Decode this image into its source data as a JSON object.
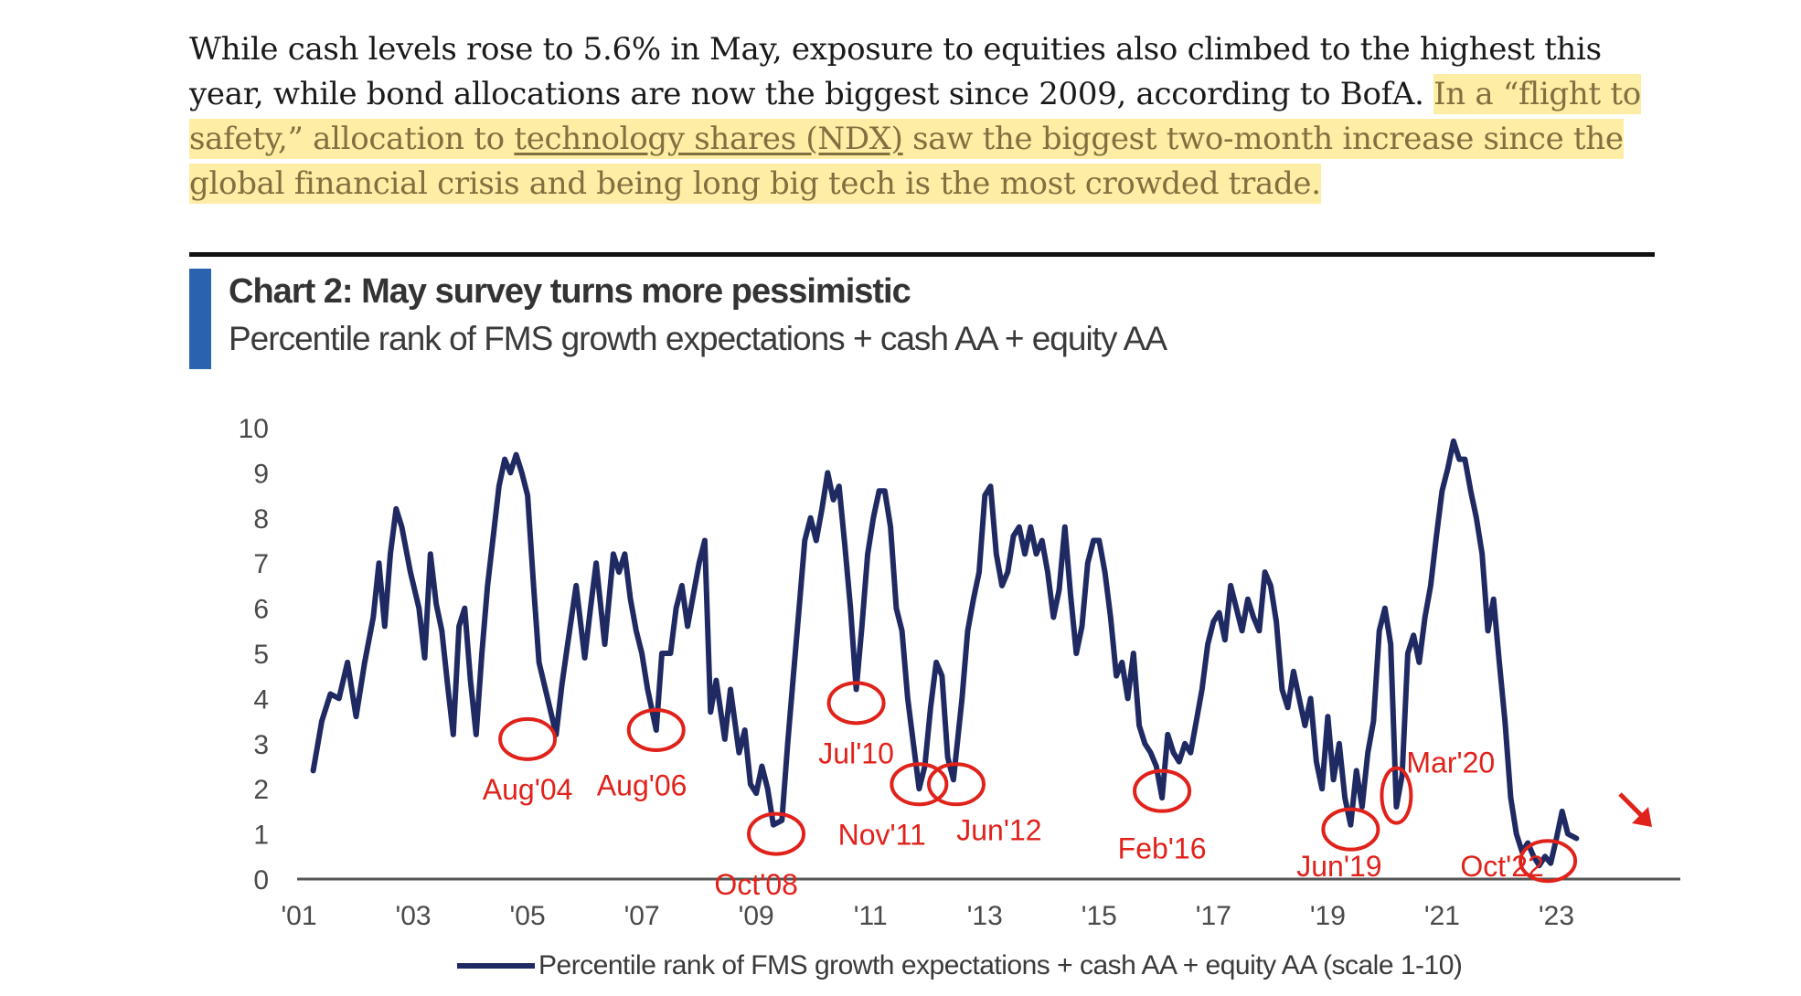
{
  "article": {
    "plain_text": "While cash levels rose to 5.6% in May, exposure to equities also climbed to the highest this year, while bond allocations are now the biggest since 2009, according to BofA. ",
    "highlight_intro": "In a “flight to safety,” allocation to ",
    "link_text": "technology shares (NDX)",
    "highlight_rest": " saw the biggest two-month increase since the global financial crisis and being long big tech is the most crowded trade."
  },
  "colors": {
    "line": "#1f2a63",
    "annotation": "#e0221b",
    "accent": "#2a62b0",
    "highlight": "#fdde5a"
  },
  "chart_data": {
    "type": "line",
    "title": "Chart 2: May survey turns more pessimistic",
    "subtitle": "Percentile rank of FMS growth expectations + cash AA + equity AA",
    "ylim": [
      0,
      10
    ],
    "y_ticks": [
      "0",
      "1",
      "2",
      "3",
      "4",
      "5",
      "6",
      "7",
      "8",
      "9",
      "10"
    ],
    "xlim": [
      2001,
      2024
    ],
    "x_ticks": [
      {
        "year": 2001,
        "label": "'01"
      },
      {
        "year": 2003,
        "label": "'03"
      },
      {
        "year": 2005,
        "label": "'05"
      },
      {
        "year": 2007,
        "label": "'07"
      },
      {
        "year": 2009,
        "label": "'09"
      },
      {
        "year": 2011,
        "label": "'11"
      },
      {
        "year": 2013,
        "label": "'13"
      },
      {
        "year": 2015,
        "label": "'15"
      },
      {
        "year": 2017,
        "label": "'17"
      },
      {
        "year": 2019,
        "label": "'19"
      },
      {
        "year": 2021,
        "label": "'21"
      },
      {
        "year": 2023,
        "label": "'23"
      }
    ],
    "legend": "Percentile rank of FMS growth expectations + cash AA + equity AA (scale 1-10)",
    "series": [
      {
        "name": "Percentile rank of FMS growth expectations + cash AA + equity AA (scale 1-10)",
        "points": [
          [
            2001.25,
            2.4
          ],
          [
            2001.4,
            3.5
          ],
          [
            2001.55,
            4.1
          ],
          [
            2001.7,
            4.0
          ],
          [
            2001.85,
            4.8
          ],
          [
            2002.0,
            3.6
          ],
          [
            2002.15,
            4.8
          ],
          [
            2002.3,
            5.8
          ],
          [
            2002.4,
            7.0
          ],
          [
            2002.5,
            5.6
          ],
          [
            2002.6,
            7.2
          ],
          [
            2002.7,
            8.2
          ],
          [
            2002.8,
            7.8
          ],
          [
            2002.95,
            6.8
          ],
          [
            2003.1,
            6.0
          ],
          [
            2003.2,
            4.9
          ],
          [
            2003.3,
            7.2
          ],
          [
            2003.4,
            6.1
          ],
          [
            2003.5,
            5.5
          ],
          [
            2003.6,
            4.3
          ],
          [
            2003.7,
            3.2
          ],
          [
            2003.8,
            5.6
          ],
          [
            2003.9,
            6.0
          ],
          [
            2004.0,
            4.4
          ],
          [
            2004.1,
            3.2
          ],
          [
            2004.2,
            5.0
          ],
          [
            2004.3,
            6.5
          ],
          [
            2004.4,
            7.6
          ],
          [
            2004.5,
            8.7
          ],
          [
            2004.6,
            9.3
          ],
          [
            2004.7,
            9.0
          ],
          [
            2004.8,
            9.4
          ],
          [
            2004.9,
            9.0
          ],
          [
            2005.0,
            8.5
          ],
          [
            2005.1,
            6.6
          ],
          [
            2005.2,
            4.8
          ],
          [
            2005.35,
            4.0
          ],
          [
            2005.5,
            3.2
          ],
          [
            2005.6,
            4.3
          ],
          [
            2005.7,
            5.2
          ],
          [
            2005.85,
            6.5
          ],
          [
            2006.0,
            4.9
          ],
          [
            2006.1,
            6.0
          ],
          [
            2006.2,
            7.0
          ],
          [
            2006.35,
            5.2
          ],
          [
            2006.5,
            7.2
          ],
          [
            2006.6,
            6.8
          ],
          [
            2006.7,
            7.2
          ],
          [
            2006.8,
            6.2
          ],
          [
            2006.9,
            5.5
          ],
          [
            2007.0,
            5.0
          ],
          [
            2007.1,
            4.2
          ],
          [
            2007.25,
            3.3
          ],
          [
            2007.35,
            5.0
          ],
          [
            2007.5,
            5.0
          ],
          [
            2007.6,
            6.0
          ],
          [
            2007.7,
            6.5
          ],
          [
            2007.8,
            5.6
          ],
          [
            2007.9,
            6.3
          ],
          [
            2008.0,
            7.0
          ],
          [
            2008.1,
            7.5
          ],
          [
            2008.2,
            3.7
          ],
          [
            2008.3,
            4.4
          ],
          [
            2008.45,
            3.1
          ],
          [
            2008.55,
            4.2
          ],
          [
            2008.7,
            2.8
          ],
          [
            2008.8,
            3.3
          ],
          [
            2008.9,
            2.1
          ],
          [
            2009.0,
            1.9
          ],
          [
            2009.1,
            2.5
          ],
          [
            2009.2,
            2.0
          ],
          [
            2009.3,
            1.2
          ],
          [
            2009.45,
            1.3
          ],
          [
            2009.55,
            3.0
          ],
          [
            2009.65,
            4.5
          ],
          [
            2009.75,
            6.0
          ],
          [
            2009.85,
            7.5
          ],
          [
            2009.95,
            8.0
          ],
          [
            2010.05,
            7.5
          ],
          [
            2010.15,
            8.2
          ],
          [
            2010.25,
            9.0
          ],
          [
            2010.35,
            8.4
          ],
          [
            2010.45,
            8.7
          ],
          [
            2010.55,
            7.4
          ],
          [
            2010.65,
            6.0
          ],
          [
            2010.75,
            4.2
          ],
          [
            2010.85,
            5.6
          ],
          [
            2010.95,
            7.2
          ],
          [
            2011.05,
            8.0
          ],
          [
            2011.15,
            8.6
          ],
          [
            2011.25,
            8.6
          ],
          [
            2011.35,
            7.8
          ],
          [
            2011.45,
            6.0
          ],
          [
            2011.55,
            5.5
          ],
          [
            2011.65,
            4.0
          ],
          [
            2011.75,
            3.0
          ],
          [
            2011.85,
            2.0
          ],
          [
            2011.95,
            2.5
          ],
          [
            2012.05,
            3.8
          ],
          [
            2012.15,
            4.8
          ],
          [
            2012.25,
            4.5
          ],
          [
            2012.35,
            2.7
          ],
          [
            2012.45,
            2.2
          ],
          [
            2012.6,
            4.0
          ],
          [
            2012.7,
            5.5
          ],
          [
            2012.8,
            6.2
          ],
          [
            2012.9,
            6.8
          ],
          [
            2013.0,
            8.5
          ],
          [
            2013.1,
            8.7
          ],
          [
            2013.2,
            7.2
          ],
          [
            2013.3,
            6.5
          ],
          [
            2013.4,
            6.8
          ],
          [
            2013.5,
            7.6
          ],
          [
            2013.6,
            7.8
          ],
          [
            2013.7,
            7.2
          ],
          [
            2013.8,
            7.8
          ],
          [
            2013.9,
            7.2
          ],
          [
            2014.0,
            7.5
          ],
          [
            2014.1,
            6.8
          ],
          [
            2014.2,
            5.8
          ],
          [
            2014.3,
            6.4
          ],
          [
            2014.4,
            7.8
          ],
          [
            2014.5,
            6.3
          ],
          [
            2014.6,
            5.0
          ],
          [
            2014.7,
            5.6
          ],
          [
            2014.8,
            7.0
          ],
          [
            2014.9,
            7.5
          ],
          [
            2015.0,
            7.5
          ],
          [
            2015.1,
            6.8
          ],
          [
            2015.2,
            5.8
          ],
          [
            2015.3,
            4.5
          ],
          [
            2015.4,
            4.8
          ],
          [
            2015.5,
            4.0
          ],
          [
            2015.6,
            5.0
          ],
          [
            2015.7,
            3.4
          ],
          [
            2015.8,
            3.0
          ],
          [
            2015.9,
            2.8
          ],
          [
            2016.0,
            2.5
          ],
          [
            2016.1,
            1.8
          ],
          [
            2016.2,
            3.2
          ],
          [
            2016.3,
            2.8
          ],
          [
            2016.4,
            2.6
          ],
          [
            2016.5,
            3.0
          ],
          [
            2016.6,
            2.8
          ],
          [
            2016.7,
            3.5
          ],
          [
            2016.8,
            4.2
          ],
          [
            2016.9,
            5.2
          ],
          [
            2017.0,
            5.7
          ],
          [
            2017.1,
            5.9
          ],
          [
            2017.2,
            5.3
          ],
          [
            2017.3,
            6.5
          ],
          [
            2017.4,
            6.0
          ],
          [
            2017.5,
            5.5
          ],
          [
            2017.6,
            6.2
          ],
          [
            2017.7,
            5.8
          ],
          [
            2017.8,
            5.5
          ],
          [
            2017.9,
            6.8
          ],
          [
            2018.0,
            6.5
          ],
          [
            2018.1,
            5.7
          ],
          [
            2018.2,
            4.2
          ],
          [
            2018.3,
            3.8
          ],
          [
            2018.4,
            4.6
          ],
          [
            2018.5,
            4.0
          ],
          [
            2018.6,
            3.4
          ],
          [
            2018.7,
            4.0
          ],
          [
            2018.8,
            2.6
          ],
          [
            2018.9,
            2.0
          ],
          [
            2019.0,
            3.6
          ],
          [
            2019.1,
            2.2
          ],
          [
            2019.2,
            3.0
          ],
          [
            2019.3,
            1.8
          ],
          [
            2019.4,
            1.2
          ],
          [
            2019.5,
            2.4
          ],
          [
            2019.6,
            1.6
          ],
          [
            2019.7,
            2.8
          ],
          [
            2019.8,
            3.5
          ],
          [
            2019.9,
            5.5
          ],
          [
            2020.0,
            6.0
          ],
          [
            2020.1,
            5.2
          ],
          [
            2020.2,
            1.6
          ],
          [
            2020.3,
            2.3
          ],
          [
            2020.4,
            5.0
          ],
          [
            2020.5,
            5.4
          ],
          [
            2020.6,
            4.8
          ],
          [
            2020.7,
            5.8
          ],
          [
            2020.8,
            6.5
          ],
          [
            2020.9,
            7.6
          ],
          [
            2021.0,
            8.6
          ],
          [
            2021.1,
            9.1
          ],
          [
            2021.2,
            9.7
          ],
          [
            2021.3,
            9.3
          ],
          [
            2021.4,
            9.3
          ],
          [
            2021.5,
            8.6
          ],
          [
            2021.6,
            8.0
          ],
          [
            2021.7,
            7.2
          ],
          [
            2021.8,
            5.5
          ],
          [
            2021.9,
            6.2
          ],
          [
            2022.0,
            4.8
          ],
          [
            2022.1,
            3.5
          ],
          [
            2022.2,
            1.8
          ],
          [
            2022.3,
            1.0
          ],
          [
            2022.4,
            0.6
          ],
          [
            2022.5,
            0.8
          ],
          [
            2022.6,
            0.5
          ],
          [
            2022.7,
            0.3
          ],
          [
            2022.8,
            0.5
          ],
          [
            2022.9,
            0.35
          ],
          [
            2023.0,
            0.9
          ],
          [
            2023.1,
            1.5
          ],
          [
            2023.2,
            1.0
          ],
          [
            2023.35,
            0.9
          ]
        ]
      }
    ],
    "annotations": [
      {
        "label": "Aug'04",
        "circle": [
          2005.0,
          3.1
        ],
        "text": [
          2005.0,
          2.0
        ]
      },
      {
        "label": "Aug'06",
        "circle": [
          2007.25,
          3.3
        ],
        "text": [
          2007.0,
          2.1
        ]
      },
      {
        "label": "Oct'08",
        "circle": [
          2009.35,
          1.0
        ],
        "text": [
          2009.0,
          -0.1
        ]
      },
      {
        "label": "Jul'10",
        "circle": [
          2010.75,
          3.9
        ],
        "text": [
          2010.75,
          2.8
        ]
      },
      {
        "label": "Nov'11",
        "circle": [
          2011.85,
          2.1
        ],
        "text": [
          2011.2,
          1.0
        ]
      },
      {
        "label": "Jun'12",
        "circle": [
          2012.5,
          2.1
        ],
        "text": [
          2013.25,
          1.1
        ]
      },
      {
        "label": "Feb'16",
        "circle": [
          2016.1,
          1.95
        ],
        "text": [
          2016.1,
          0.7
        ]
      },
      {
        "label": "Jun'19",
        "circle": [
          2019.4,
          1.1
        ],
        "text": [
          2019.2,
          0.3
        ]
      },
      {
        "label": "Mar'20",
        "circle": [
          2020.2,
          1.85
        ],
        "text": [
          2021.15,
          2.6
        ]
      },
      {
        "label": "Oct'22",
        "circle": [
          2022.85,
          0.4
        ],
        "text": [
          2022.05,
          0.3
        ]
      }
    ]
  }
}
